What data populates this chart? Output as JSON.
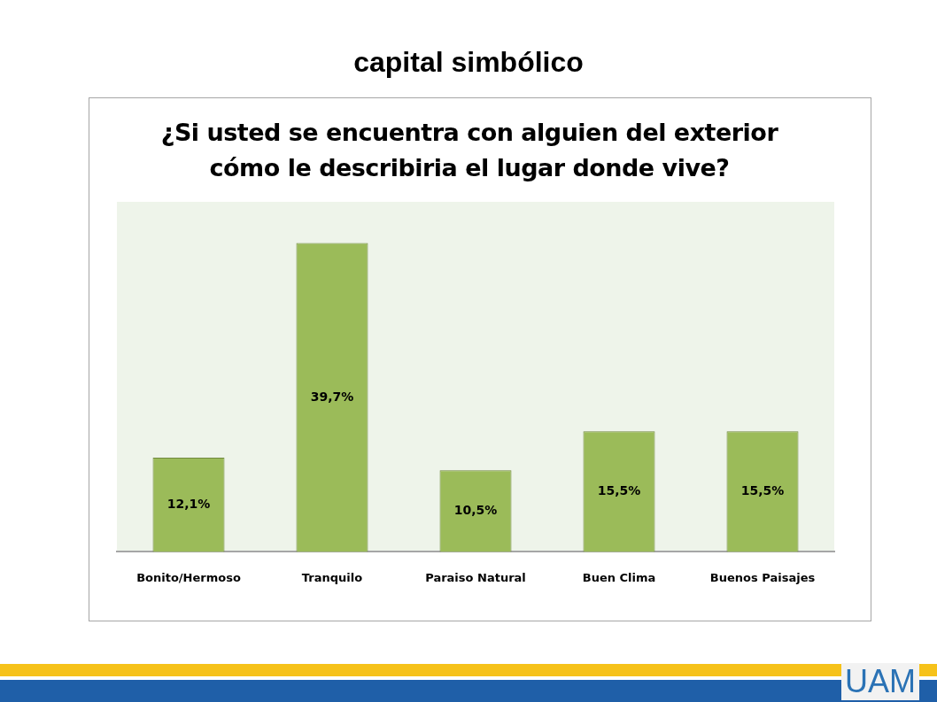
{
  "chart_data": {
    "type": "bar",
    "title": "capital simbólico",
    "subtitle": "¿Si usted se encuentra con alguien del exterior cómo le describiria el lugar donde vive?",
    "categories": [
      "Bonito/Hermoso",
      "Tranquilo",
      "Paraiso Natural",
      "Buen Clima",
      "Buenos Paisajes"
    ],
    "values": [
      12.1,
      39.7,
      10.5,
      15.5,
      15.5
    ],
    "value_labels": [
      "12,1%",
      "39,7%",
      "10,5%",
      "15,5%",
      "15,5%"
    ],
    "color": "#9bbb59",
    "annotations": [
      "UAM"
    ]
  }
}
